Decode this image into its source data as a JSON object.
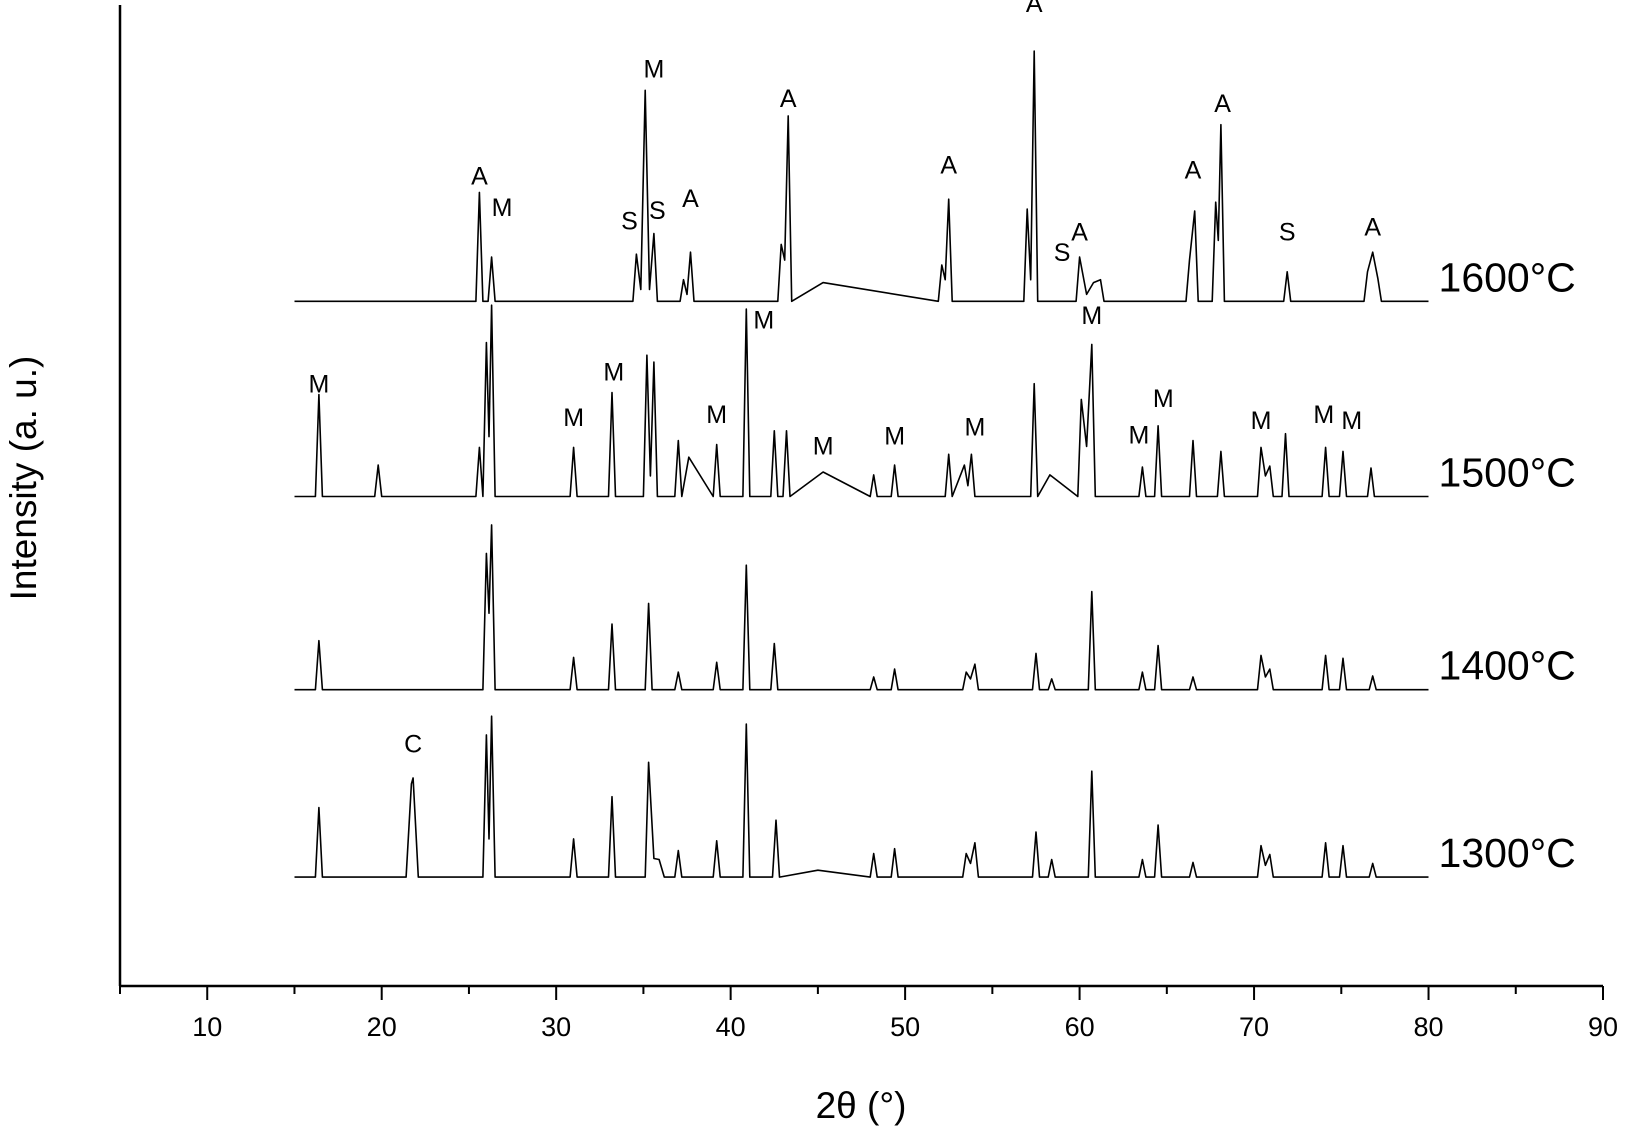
{
  "chart_data": {
    "type": "line",
    "xlabel": "2θ (°)",
    "ylabel": "Intensity (a. u.)",
    "xlim": [
      5,
      90
    ],
    "xticks": [
      10,
      20,
      30,
      40,
      50,
      60,
      70,
      80,
      90
    ],
    "xminor_ticks": [
      5,
      15,
      25,
      35,
      45,
      55,
      65,
      75,
      85
    ],
    "ylim": [
      0,
      100
    ],
    "series": [
      {
        "name": "1300°C",
        "color": "#000000",
        "x": [
          15,
          16.2,
          16.4,
          16.6,
          21.4,
          21.7,
          21.8,
          22.1,
          25.8,
          26.0,
          26.15,
          26.3,
          26.5,
          30.8,
          31.0,
          31.2,
          33.0,
          33.2,
          33.4,
          35.1,
          35.3,
          35.6,
          35.9,
          36.2,
          36.8,
          37.0,
          37.2,
          39.0,
          39.2,
          39.4,
          40.7,
          40.9,
          41.1,
          42.4,
          42.6,
          42.8,
          45.0,
          48.0,
          48.2,
          48.4,
          49.2,
          49.4,
          49.6,
          53.3,
          53.5,
          53.75,
          54.0,
          54.2,
          57.3,
          57.5,
          57.7,
          58.2,
          58.4,
          58.6,
          60.5,
          60.7,
          60.9,
          63.4,
          63.6,
          63.8,
          64.3,
          64.5,
          64.7,
          66.3,
          66.5,
          66.7,
          70.2,
          70.4,
          70.65,
          70.9,
          71.1,
          73.9,
          74.1,
          74.3,
          74.9,
          75.1,
          75.3,
          76.6,
          76.8,
          77.0,
          80
        ],
        "values": [
          11.1,
          11.1,
          18.2,
          11.1,
          11.1,
          20.6,
          21.2,
          11.1,
          11.1,
          25.6,
          15,
          27.5,
          11.1,
          11.1,
          15.0,
          11.1,
          11.1,
          19.3,
          11.1,
          11.1,
          22.8,
          13,
          12.9,
          11.1,
          11.1,
          13.8,
          11.1,
          11.1,
          14.8,
          11.1,
          11.1,
          26.7,
          11.1,
          11.1,
          16.9,
          11.1,
          11.8,
          11.1,
          13.5,
          11.1,
          11.1,
          14.0,
          11.1,
          11.1,
          13.5,
          12.5,
          14.6,
          11.1,
          11.1,
          15.7,
          11.1,
          11.1,
          12.9,
          11.1,
          11.1,
          21.9,
          11.1,
          11.1,
          12.9,
          11.1,
          11.1,
          16.4,
          11.1,
          11.1,
          12.6,
          11.1,
          11.1,
          14.3,
          12.3,
          13.4,
          11.1,
          11.1,
          14.6,
          11.1,
          11.1,
          14.3,
          11.1,
          11.1,
          12.5,
          11.1,
          11.1
        ]
      },
      {
        "name": "1400°C",
        "color": "#000000",
        "x": [
          15,
          16.2,
          16.4,
          16.6,
          25.8,
          26.0,
          26.15,
          26.3,
          26.5,
          30.8,
          31.0,
          31.2,
          33.0,
          33.2,
          33.4,
          35.1,
          35.3,
          35.5,
          36.8,
          37.0,
          37.2,
          39.0,
          39.2,
          39.4,
          40.7,
          40.9,
          41.1,
          42.3,
          42.5,
          42.7,
          48.0,
          48.2,
          48.4,
          49.2,
          49.4,
          49.6,
          53.3,
          53.5,
          53.75,
          54.0,
          54.2,
          57.3,
          57.5,
          57.7,
          58.2,
          58.4,
          58.6,
          60.5,
          60.7,
          60.9,
          63.4,
          63.6,
          63.8,
          64.3,
          64.5,
          64.7,
          66.3,
          66.5,
          66.7,
          70.2,
          70.4,
          70.65,
          70.9,
          71.1,
          73.9,
          74.1,
          74.3,
          74.9,
          75.1,
          75.3,
          76.6,
          76.8,
          77.0,
          80
        ],
        "values": [
          30.2,
          30.2,
          35.2,
          30.2,
          30.2,
          44.1,
          38,
          47.0,
          30.2,
          30.2,
          33.5,
          30.2,
          30.2,
          36.9,
          30.2,
          30.2,
          39.0,
          30.2,
          30.2,
          32.0,
          30.2,
          30.2,
          33.0,
          30.2,
          30.2,
          42.9,
          30.2,
          30.2,
          34.9,
          30.2,
          30.2,
          31.5,
          30.2,
          30.2,
          32.3,
          30.2,
          30.2,
          32.0,
          31.3,
          32.8,
          30.2,
          30.2,
          33.9,
          30.2,
          30.2,
          31.3,
          30.2,
          30.2,
          40.2,
          30.2,
          30.2,
          32.0,
          30.2,
          30.2,
          34.7,
          30.2,
          30.2,
          31.5,
          30.2,
          30.2,
          33.7,
          31.5,
          32.3,
          30.2,
          30.2,
          33.7,
          30.2,
          30.2,
          33.4,
          30.2,
          30.2,
          31.6,
          30.2,
          30.2
        ]
      },
      {
        "name": "1500°C",
        "color": "#000000",
        "x": [
          15,
          16.2,
          16.4,
          16.6,
          19.6,
          19.8,
          20.0,
          25.4,
          25.6,
          25.8,
          26.0,
          26.15,
          26.3,
          26.5,
          30.8,
          31.0,
          31.2,
          33.0,
          33.2,
          33.4,
          35.0,
          35.2,
          35.4,
          35.6,
          35.8,
          36.8,
          37.0,
          37.2,
          37.6,
          39.0,
          39.2,
          39.4,
          40.7,
          40.9,
          41.1,
          42.3,
          42.5,
          42.7,
          43.0,
          43.2,
          43.4,
          45.3,
          48.0,
          48.2,
          48.4,
          49.2,
          49.4,
          49.6,
          52.3,
          52.5,
          52.7,
          53.4,
          53.6,
          53.8,
          54.0,
          57.2,
          57.4,
          57.6,
          58.3,
          59.9,
          60.1,
          60.4,
          60.7,
          60.9,
          63.4,
          63.6,
          63.8,
          64.3,
          64.5,
          64.7,
          66.3,
          66.5,
          66.7,
          67.9,
          68.1,
          68.3,
          70.2,
          70.4,
          70.65,
          70.9,
          71.1,
          71.6,
          71.8,
          72.0,
          73.9,
          74.1,
          74.3,
          74.9,
          75.1,
          75.3,
          76.5,
          76.7,
          76.9,
          80
        ],
        "values": [
          49.9,
          49.9,
          60.3,
          49.9,
          49.9,
          53.1,
          49.9,
          49.9,
          54.9,
          49.9,
          65.6,
          56,
          69.4,
          49.9,
          49.9,
          54.9,
          49.9,
          49.9,
          60.5,
          49.9,
          49.9,
          64.3,
          52,
          63.6,
          49.9,
          49.9,
          55.6,
          49.9,
          53.9,
          49.9,
          55.2,
          49.9,
          49.9,
          69.0,
          49.9,
          49.9,
          56.6,
          49.9,
          49.9,
          56.6,
          49.9,
          52.4,
          49.9,
          52.1,
          49.9,
          49.9,
          53.1,
          49.9,
          49.9,
          54.2,
          49.9,
          53.1,
          51,
          54.2,
          49.9,
          49.9,
          61.4,
          49.9,
          52.1,
          49.9,
          59.8,
          55,
          65.4,
          49.9,
          49.9,
          52.9,
          49.9,
          49.9,
          57.1,
          49.9,
          49.9,
          55.6,
          49.9,
          49.9,
          54.5,
          49.9,
          49.9,
          54.9,
          52,
          53.0,
          49.9,
          49.9,
          56.3,
          49.9,
          49.9,
          54.9,
          49.9,
          49.9,
          54.5,
          49.9,
          49.9,
          52.8,
          49.9,
          49.9
        ]
      },
      {
        "name": "1600°C",
        "color": "#000000",
        "x": [
          15,
          25.4,
          25.6,
          25.8,
          26.1,
          26.3,
          26.5,
          34.4,
          34.6,
          34.85,
          35.1,
          35.35,
          35.6,
          35.8,
          37.1,
          37.3,
          37.5,
          37.7,
          37.9,
          42.7,
          42.9,
          43.1,
          43.3,
          43.5,
          45.3,
          51.9,
          52.1,
          52.3,
          52.5,
          52.7,
          56.8,
          57.0,
          57.2,
          57.4,
          57.6,
          59.8,
          60.0,
          60.4,
          60.8,
          61.2,
          61.4,
          66.1,
          66.3,
          66.6,
          66.8,
          67.6,
          67.8,
          67.95,
          68.1,
          68.3,
          71.7,
          71.9,
          72.1,
          76.3,
          76.5,
          76.8,
          77.1,
          77.3,
          80
        ],
        "values": [
          69.8,
          69.8,
          80.9,
          69.8,
          69.8,
          74.3,
          69.8,
          69.8,
          74.6,
          71,
          91.3,
          71,
          76.7,
          69.8,
          69.8,
          72.0,
          70.5,
          74.8,
          69.8,
          69.8,
          75.6,
          74,
          88.7,
          69.8,
          71.7,
          69.8,
          73.5,
          72,
          80.2,
          69.8,
          69.8,
          79.2,
          72,
          95.3,
          69.8,
          69.8,
          74.3,
          70.5,
          71.7,
          72.0,
          69.8,
          69.8,
          74.0,
          79.0,
          69.8,
          69.8,
          79.9,
          76,
          87.8,
          69.8,
          69.8,
          72.8,
          69.8,
          69.8,
          72.8,
          74.8,
          72.1,
          69.8,
          69.8
        ]
      }
    ],
    "annotations": [
      {
        "text": "A",
        "x": 25.6,
        "y": 81.7
      },
      {
        "text": "M",
        "x": 26.9,
        "y": 78.5
      },
      {
        "text": "S",
        "x": 34.2,
        "y": 77.1
      },
      {
        "text": "M",
        "x": 35.6,
        "y": 92.6
      },
      {
        "text": "S",
        "x": 35.8,
        "y": 78.2
      },
      {
        "text": "A",
        "x": 37.7,
        "y": 79.4
      },
      {
        "text": "A",
        "x": 43.3,
        "y": 89.6
      },
      {
        "text": "A",
        "x": 52.5,
        "y": 82.8
      },
      {
        "text": "A",
        "x": 57.4,
        "y": 99.3
      },
      {
        "text": "S",
        "x": 59.0,
        "y": 73.9
      },
      {
        "text": "A",
        "x": 60.0,
        "y": 76.0
      },
      {
        "text": "A",
        "x": 66.5,
        "y": 82.3
      },
      {
        "text": "A",
        "x": 68.2,
        "y": 89.1
      },
      {
        "text": "S",
        "x": 71.9,
        "y": 76.0
      },
      {
        "text": "A",
        "x": 76.8,
        "y": 76.5
      },
      {
        "text": "M",
        "x": 16.4,
        "y": 60.5
      },
      {
        "text": "M",
        "x": 31.0,
        "y": 57.1
      },
      {
        "text": "M",
        "x": 33.3,
        "y": 61.7
      },
      {
        "text": "M",
        "x": 39.2,
        "y": 57.4
      },
      {
        "text": "M",
        "x": 41.9,
        "y": 67.0
      },
      {
        "text": "M",
        "x": 45.3,
        "y": 54.2
      },
      {
        "text": "M",
        "x": 49.4,
        "y": 55.2
      },
      {
        "text": "M",
        "x": 54.0,
        "y": 56.1
      },
      {
        "text": "M",
        "x": 60.7,
        "y": 67.5
      },
      {
        "text": "M",
        "x": 63.4,
        "y": 55.3
      },
      {
        "text": "M",
        "x": 64.8,
        "y": 59.0
      },
      {
        "text": "M",
        "x": 70.4,
        "y": 56.8
      },
      {
        "text": "M",
        "x": 74.0,
        "y": 57.4
      },
      {
        "text": "M",
        "x": 75.6,
        "y": 56.8
      },
      {
        "text": "C",
        "x": 21.8,
        "y": 23.8
      }
    ]
  }
}
